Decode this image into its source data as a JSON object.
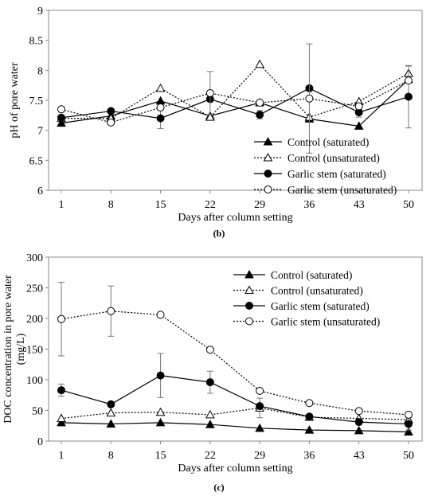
{
  "chart_data": [
    {
      "type": "line",
      "panel_label": "(b)",
      "xlabel": "Days after column setting",
      "ylabel": "pH of pore water",
      "categories": [
        "1",
        "8",
        "15",
        "22",
        "29",
        "36",
        "43",
        "50"
      ],
      "y_ticks": [
        "6",
        "6.5",
        "7",
        "7.5",
        "8",
        "8.5",
        "9"
      ],
      "ylim": [
        6,
        9
      ],
      "grid": false,
      "legend_position": "bottom-right",
      "series": [
        {
          "name": "Control (saturated)",
          "values": [
            7.12,
            7.24,
            7.49,
            7.24,
            7.46,
            7.19,
            7.07,
            7.85
          ],
          "errors": [
            0,
            0,
            0,
            0,
            0,
            0,
            0,
            0
          ],
          "marker": "triangle-filled",
          "line": "solid"
        },
        {
          "name": "Control (unsaturated)",
          "values": [
            7.2,
            7.2,
            7.7,
            7.22,
            8.1,
            7.22,
            7.48,
            7.95
          ],
          "errors": [
            0,
            0,
            0,
            0,
            0,
            0,
            0,
            0.12
          ],
          "marker": "triangle-open",
          "line": "dotted"
        },
        {
          "name": "Garlic stem (saturated)",
          "values": [
            7.21,
            7.32,
            7.2,
            7.52,
            7.26,
            7.7,
            7.3,
            7.56
          ],
          "errors": [
            0,
            0,
            0.17,
            0,
            0.07,
            0,
            0.08,
            0.52
          ],
          "marker": "circle-filled",
          "line": "solid"
        },
        {
          "name": "Garlic stem (unsaturated)",
          "values": [
            7.35,
            7.13,
            7.38,
            7.62,
            7.46,
            7.53,
            7.4,
            7.83
          ],
          "errors": [
            0,
            0,
            0,
            0.36,
            0,
            0.91,
            0,
            0
          ],
          "marker": "circle-open",
          "line": "dotted"
        }
      ]
    },
    {
      "type": "line",
      "panel_label": "(c)",
      "xlabel": "Days after column setting",
      "ylabel_lines": [
        "DOC concentration in pore water",
        "(mg/L)"
      ],
      "categories": [
        "1",
        "8",
        "15",
        "22",
        "29",
        "36",
        "43",
        "50"
      ],
      "y_ticks": [
        "0",
        "50",
        "100",
        "150",
        "200",
        "250",
        "300"
      ],
      "ylim": [
        0,
        300
      ],
      "grid": false,
      "legend_position": "top-right",
      "series": [
        {
          "name": "Control (saturated)",
          "values": [
            30,
            28,
            30,
            27,
            21,
            18,
            17,
            15
          ],
          "errors": [
            0,
            0,
            0,
            0,
            0,
            0,
            0,
            0
          ],
          "marker": "triangle-filled",
          "line": "solid"
        },
        {
          "name": "Control (unsaturated)",
          "values": [
            37,
            46,
            47,
            43,
            54,
            39,
            37,
            35
          ],
          "errors": [
            0,
            0,
            0,
            0,
            16,
            0,
            0,
            0
          ],
          "marker": "triangle-open",
          "line": "dotted"
        },
        {
          "name": "Garlic stem (saturated)",
          "values": [
            83,
            60,
            107,
            96,
            57,
            40,
            31,
            28
          ],
          "errors": [
            10,
            0,
            36,
            18,
            0,
            0,
            0,
            10
          ],
          "marker": "circle-filled",
          "line": "solid"
        },
        {
          "name": "Garlic stem (unsaturated)",
          "values": [
            199,
            212,
            206,
            149,
            82,
            62,
            49,
            43
          ],
          "errors": [
            60,
            41,
            0,
            0,
            0,
            0,
            0,
            0
          ],
          "marker": "circle-open",
          "line": "dotted"
        }
      ]
    }
  ]
}
